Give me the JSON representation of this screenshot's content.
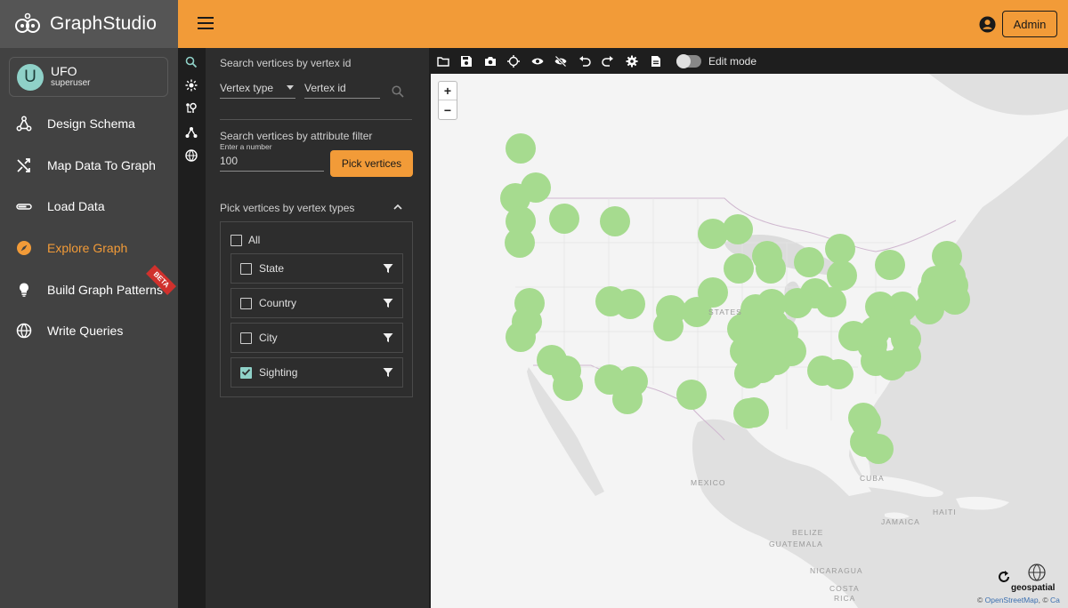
{
  "app": {
    "logo_text": "GraphStudio"
  },
  "user": {
    "initial": "U",
    "name": "UFO",
    "role": "superuser"
  },
  "nav": {
    "items": [
      {
        "label": "Design Schema",
        "icon": "schema-icon"
      },
      {
        "label": "Map Data To Graph",
        "icon": "shuffle-icon"
      },
      {
        "label": "Load Data",
        "icon": "load-icon"
      },
      {
        "label": "Explore Graph",
        "icon": "compass-icon",
        "active": true
      },
      {
        "label": "Build Graph Patterns",
        "icon": "bulb-icon",
        "badge": "BETA"
      },
      {
        "label": "Write Queries",
        "icon": "globe-icon"
      }
    ]
  },
  "topbar": {
    "account_button": "Admin"
  },
  "panel": {
    "search_by_id_title": "Search vertices by vertex id",
    "vertex_type_placeholder": "Vertex type",
    "vertex_id_placeholder": "Vertex id",
    "attr_filter_title": "Search vertices by attribute filter",
    "number_hint": "Enter a number",
    "number_value": "100",
    "pick_button": "Pick vertices",
    "vertex_types_title": "Pick vertices by vertex types",
    "all_label": "All",
    "types": [
      {
        "label": "State",
        "checked": false
      },
      {
        "label": "Country",
        "checked": false
      },
      {
        "label": "City",
        "checked": false
      },
      {
        "label": "Sighting",
        "checked": true
      }
    ]
  },
  "map_toolbar": {
    "edit_mode_label": "Edit mode",
    "edit_mode_on": false
  },
  "map": {
    "labels": {
      "states": "STATES",
      "mexico": "MEXICO",
      "cuba": "CUBA",
      "haiti": "HAITI",
      "jamaica": "JAMAICA",
      "belize": "BELIZE",
      "guatemala": "GUATEMALA",
      "nicaragua": "NICARAGUA",
      "costa_rica": "COSTA",
      "costa_rica2": "RICA"
    },
    "zoom_in": "+",
    "zoom_out": "−",
    "geo_label": "geospatial",
    "attribution_prefix": "© ",
    "attribution_link1": "OpenStreetMap",
    "attribution_mid": ", © ",
    "attribution_link2": "Ca",
    "marker_color": "#a6db8f",
    "water_color": "#e0e0e0",
    "land_color": "#f4f4f4"
  }
}
